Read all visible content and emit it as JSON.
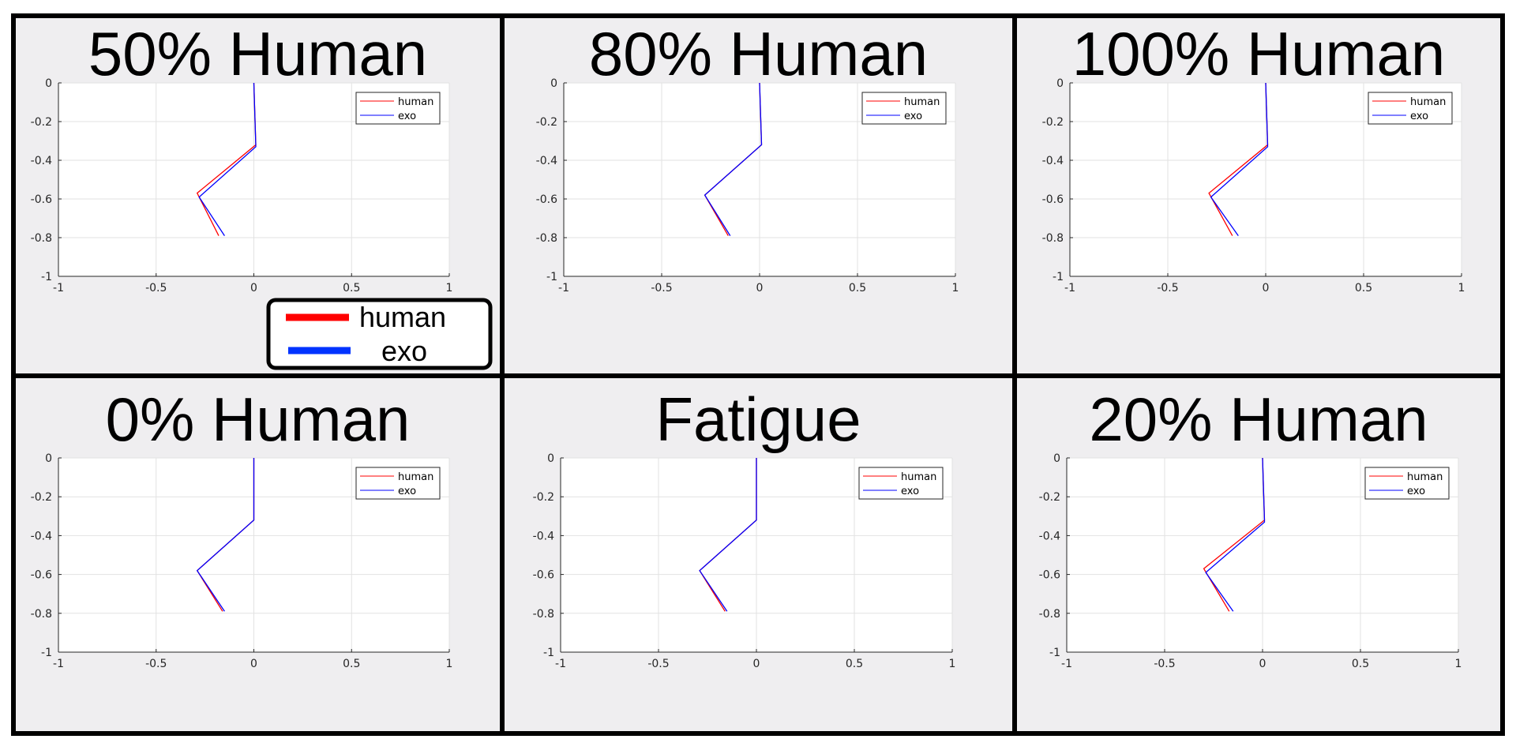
{
  "colors": {
    "human": "#ff0000",
    "exo": "#0000ff",
    "panel_bg": "#efeef0",
    "border": "#000000",
    "axes_bg": "#ffffff",
    "grid": "#e2e2e2"
  },
  "legend": {
    "entries": [
      {
        "label": "human",
        "color": "#ff0000"
      },
      {
        "label": "exo",
        "color": "#0033ff"
      }
    ]
  },
  "chart_data": [
    {
      "type": "line",
      "title": "50% Human",
      "xlim": [
        -1,
        1
      ],
      "ylim": [
        -1,
        0
      ],
      "xticks": [
        -1,
        -0.5,
        0,
        0.5,
        1
      ],
      "yticks": [
        0,
        -0.2,
        -0.4,
        -0.6,
        -0.8,
        -1
      ],
      "xtick_labels": [
        "-1",
        "-0.5",
        "0",
        "0.5",
        "1"
      ],
      "ytick_labels": [
        "0",
        "-0.2",
        "-0.4",
        "-0.6",
        "-0.8",
        "-1"
      ],
      "grid": true,
      "legend_position": "top-right",
      "series": [
        {
          "name": "human",
          "x": [
            0,
            0.01,
            -0.29,
            -0.18
          ],
          "y": [
            0,
            -0.32,
            -0.57,
            -0.79
          ]
        },
        {
          "name": "exo",
          "x": [
            0,
            0.01,
            -0.28,
            -0.15
          ],
          "y": [
            0,
            -0.33,
            -0.59,
            -0.79
          ]
        }
      ]
    },
    {
      "type": "line",
      "title": "80% Human",
      "xlim": [
        -1,
        1
      ],
      "ylim": [
        -1,
        0
      ],
      "xticks": [
        -1,
        -0.5,
        0,
        0.5,
        1
      ],
      "yticks": [
        0,
        -0.2,
        -0.4,
        -0.6,
        -0.8,
        -1
      ],
      "xtick_labels": [
        "-1",
        "-0.5",
        "0",
        "0.5",
        "1"
      ],
      "ytick_labels": [
        "0",
        "-0.2",
        "-0.4",
        "-0.6",
        "-0.8",
        "-1"
      ],
      "grid": true,
      "legend_position": "top-right",
      "series": [
        {
          "name": "human",
          "x": [
            0,
            0.01,
            -0.28,
            -0.16
          ],
          "y": [
            0,
            -0.32,
            -0.58,
            -0.79
          ]
        },
        {
          "name": "exo",
          "x": [
            0,
            0.01,
            -0.28,
            -0.15
          ],
          "y": [
            0,
            -0.32,
            -0.58,
            -0.79
          ]
        }
      ]
    },
    {
      "type": "line",
      "title": "100% Human",
      "xlim": [
        -1,
        1
      ],
      "ylim": [
        -1,
        0
      ],
      "xticks": [
        -1,
        -0.5,
        0,
        0.5,
        1
      ],
      "yticks": [
        0,
        -0.2,
        -0.4,
        -0.6,
        -0.8,
        -1
      ],
      "xtick_labels": [
        "-1",
        "-0.5",
        "0",
        "0.5",
        "1"
      ],
      "ytick_labels": [
        "0",
        "-0.2",
        "-0.4",
        "-0.6",
        "-0.8",
        "-1"
      ],
      "grid": true,
      "legend_position": "top-right",
      "series": [
        {
          "name": "human",
          "x": [
            0,
            0.01,
            -0.29,
            -0.17
          ],
          "y": [
            0,
            -0.32,
            -0.57,
            -0.79
          ]
        },
        {
          "name": "exo",
          "x": [
            0,
            0.01,
            -0.28,
            -0.14
          ],
          "y": [
            0,
            -0.33,
            -0.59,
            -0.79
          ]
        }
      ]
    },
    {
      "type": "line",
      "title": "0% Human",
      "xlim": [
        -1,
        1
      ],
      "ylim": [
        -1,
        0
      ],
      "xticks": [
        -1,
        -0.5,
        0,
        0.5,
        1
      ],
      "yticks": [
        0,
        -0.2,
        -0.4,
        -0.6,
        -0.8,
        -1
      ],
      "xtick_labels": [
        "-1",
        "-0.5",
        "0",
        "0.5",
        "1"
      ],
      "ytick_labels": [
        "0",
        "-0.2",
        "-0.4",
        "-0.6",
        "-0.8",
        "-1"
      ],
      "grid": true,
      "legend_position": "top-right",
      "series": [
        {
          "name": "human",
          "x": [
            0,
            0,
            -0.29,
            -0.16
          ],
          "y": [
            0,
            -0.32,
            -0.58,
            -0.79
          ]
        },
        {
          "name": "exo",
          "x": [
            0,
            0,
            -0.29,
            -0.15
          ],
          "y": [
            0,
            -0.32,
            -0.58,
            -0.79
          ]
        }
      ]
    },
    {
      "type": "line",
      "title": "Fatigue",
      "xlim": [
        -1,
        1
      ],
      "ylim": [
        -1,
        0
      ],
      "xticks": [
        -1,
        -0.5,
        0,
        0.5,
        1
      ],
      "yticks": [
        0,
        -0.2,
        -0.4,
        -0.6,
        -0.8,
        -1
      ],
      "xtick_labels": [
        "-1",
        "-0.5",
        "0",
        "0.5",
        "1"
      ],
      "ytick_labels": [
        "0",
        "-0.2",
        "-0.4",
        "-0.6",
        "-0.8",
        "-1"
      ],
      "grid": true,
      "legend_position": "top-right",
      "series": [
        {
          "name": "human",
          "x": [
            0,
            0,
            -0.29,
            -0.16
          ],
          "y": [
            0,
            -0.32,
            -0.58,
            -0.79
          ]
        },
        {
          "name": "exo",
          "x": [
            0,
            0,
            -0.29,
            -0.15
          ],
          "y": [
            0,
            -0.32,
            -0.58,
            -0.79
          ]
        }
      ]
    },
    {
      "type": "line",
      "title": "20% Human",
      "xlim": [
        -1,
        1
      ],
      "ylim": [
        -1,
        0
      ],
      "xticks": [
        -1,
        -0.5,
        0,
        0.5,
        1
      ],
      "yticks": [
        0,
        -0.2,
        -0.4,
        -0.6,
        -0.8,
        -1
      ],
      "xtick_labels": [
        "-1",
        "-0.5",
        "0",
        "0.5",
        "1"
      ],
      "ytick_labels": [
        "0",
        "-0.2",
        "-0.4",
        "-0.6",
        "-0.8",
        "-1"
      ],
      "grid": true,
      "legend_position": "top-right",
      "series": [
        {
          "name": "human",
          "x": [
            0,
            0.01,
            -0.3,
            -0.17
          ],
          "y": [
            0,
            -0.32,
            -0.57,
            -0.79
          ]
        },
        {
          "name": "exo",
          "x": [
            0,
            0.01,
            -0.29,
            -0.15
          ],
          "y": [
            0,
            -0.33,
            -0.59,
            -0.79
          ]
        }
      ]
    }
  ]
}
